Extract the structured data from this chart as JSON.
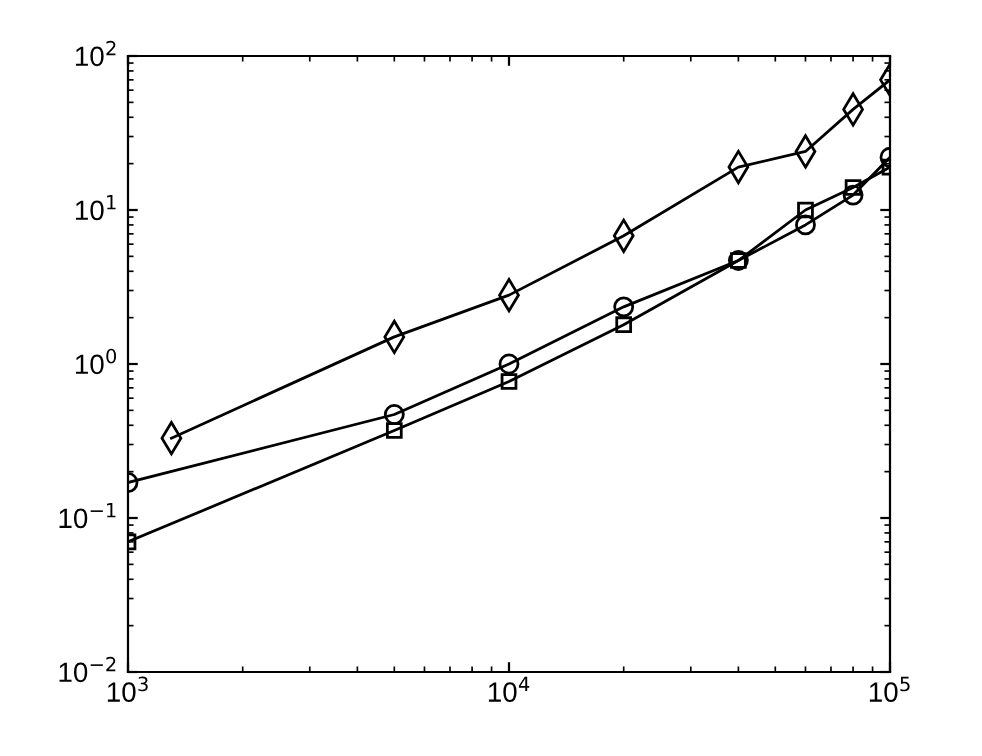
{
  "chart_data": {
    "type": "line",
    "log": "xy",
    "grid": false,
    "legend": false,
    "xlim": [
      1000,
      100000
    ],
    "ylim": [
      0.01,
      100
    ],
    "xticks": [
      {
        "value": 1000,
        "label": "10$^{3}$"
      },
      {
        "value": 10000,
        "label": "10$^{4}$"
      },
      {
        "value": 100000,
        "label": "10$^{5}$"
      }
    ],
    "yticks": [
      {
        "value": 0.01,
        "label": "10$^{−2}$"
      },
      {
        "value": 0.1,
        "label": "10$^{−1}$"
      },
      {
        "value": 1,
        "label": "10$^{0}$"
      },
      {
        "value": 10,
        "label": "10$^{1}$"
      },
      {
        "value": 100,
        "label": "10$^{2}$"
      }
    ],
    "series": [
      {
        "color": "#000000",
        "marker": "diamond",
        "x": [
          1300,
          5000,
          10000,
          20000,
          40000,
          60000,
          80000,
          100000
        ],
        "values": [
          0.33,
          1.5,
          2.8,
          6.8,
          19,
          24,
          45,
          70
        ]
      },
      {
        "color": "#000000",
        "marker": "circle",
        "x": [
          1000,
          5000,
          10000,
          20000,
          40000,
          60000,
          80000,
          100000
        ],
        "values": [
          0.17,
          0.47,
          1.0,
          2.35,
          4.7,
          8,
          12.5,
          22
        ]
      },
      {
        "color": "#000000",
        "marker": "square",
        "x": [
          1000,
          5000,
          10000,
          20000,
          40000,
          60000,
          80000,
          100000
        ],
        "values": [
          0.07,
          0.37,
          0.77,
          1.8,
          4.7,
          10,
          14,
          19
        ]
      }
    ]
  }
}
